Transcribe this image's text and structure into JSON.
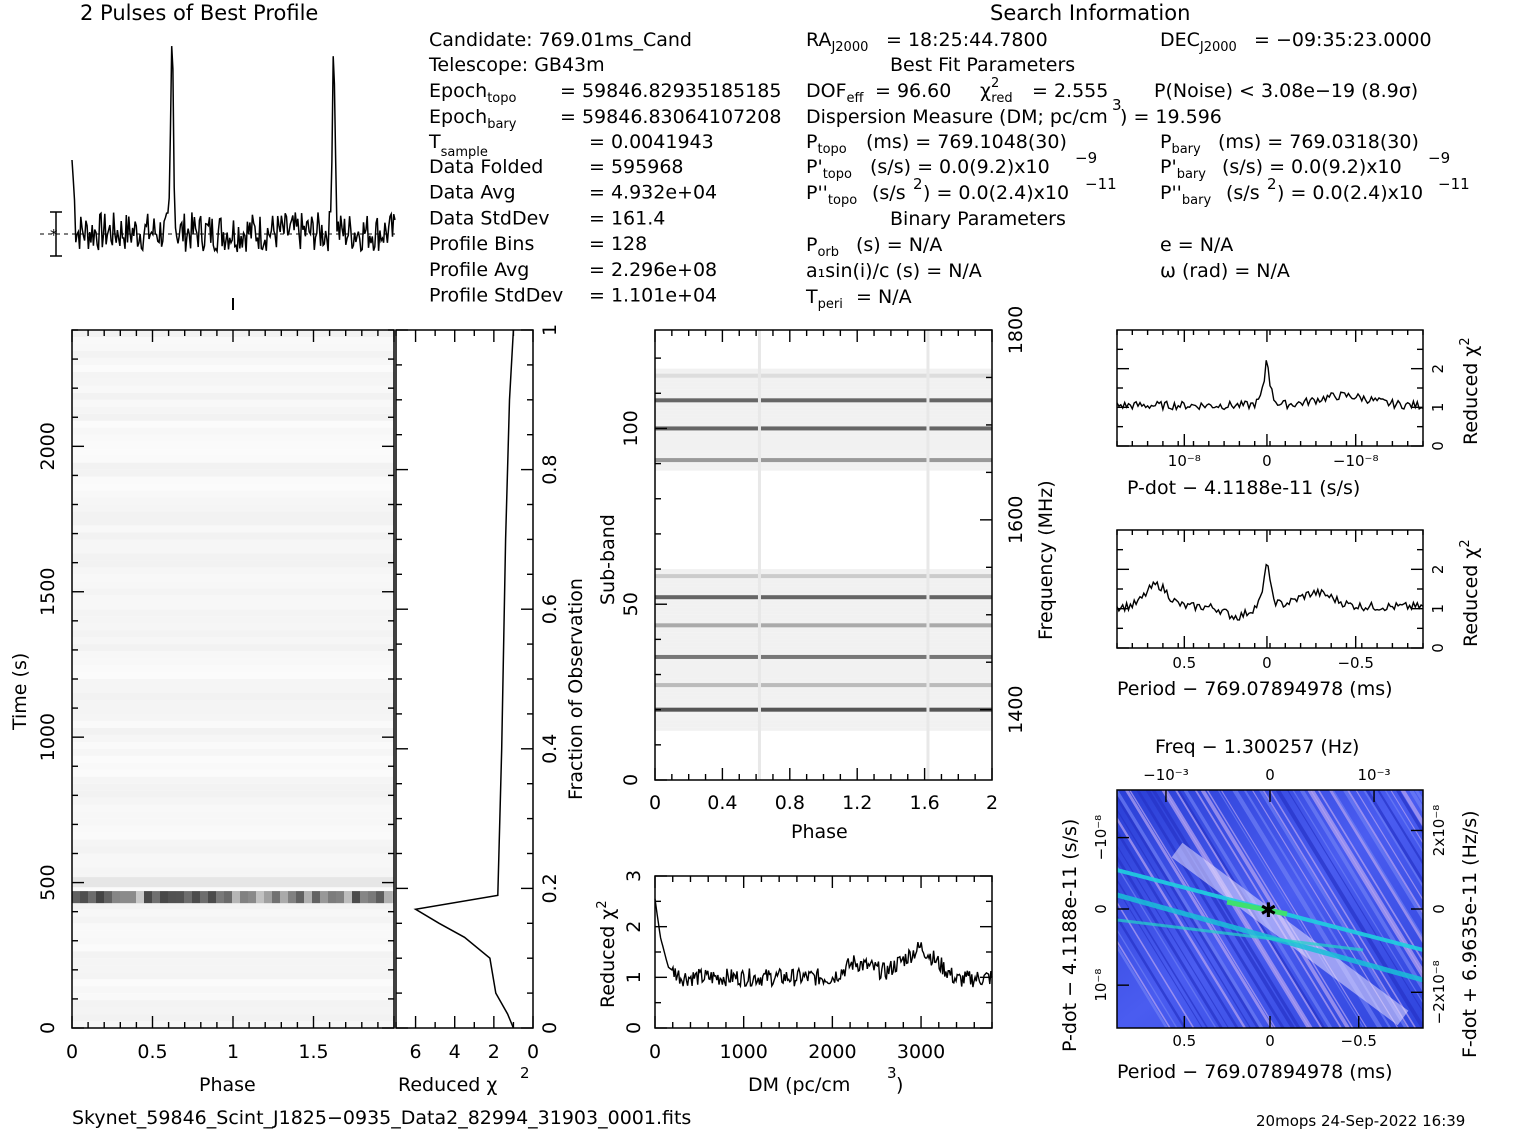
{
  "title_profile": "2 Pulses of Best Profile",
  "title_search": "Search Information",
  "info": {
    "candidate": "Candidate:  769.01ms_Cand",
    "telescope": "Telescope:  GB43m",
    "epoch_topo": "= 59846.82935185185",
    "epoch_bary": "= 59846.83064107208",
    "rows": [
      {
        "label": "Data Folded",
        "value": "=   595968"
      },
      {
        "label": "Data Avg",
        "value": "=   4.932e+04"
      },
      {
        "label": "Data StdDev",
        "value": "=   161.4"
      },
      {
        "label": "Profile Bins",
        "value": "=   128"
      },
      {
        "label": "Profile Avg",
        "value": "=   2.296e+08"
      },
      {
        "label": "Profile StdDev",
        "value": "=   1.101e+04"
      }
    ],
    "t_sample": "=   0.0041943",
    "ra": "= 18:25:44.7800",
    "dec": "= −09:35:23.0000",
    "best_fit_title": "Best Fit Parameters",
    "dof": "= 96.60",
    "chi_red": "= 2.555",
    "pnoise": "P(Noise) < 3.08e−19   (8.9σ)",
    "dm_line": "Dispersion Measure (DM; pc/cm",
    "dm_value": ") = 19.596",
    "p_topo": "(ms)  =   769.1048(30)",
    "p_bary": "(ms)  =   769.0318(30)",
    "pd_topo": "(s/s) = 0.0(9.2)x10",
    "pd_bary": "(s/s) = 0.0(9.2)x10",
    "pdd_topo": "(s/s",
    "pdd_topo_val": ") = 0.0(2.4)x10",
    "pdd_bary_val": ") = 0.0(2.4)x10",
    "binary_title": "Binary Parameters",
    "porb": "(s)  = N/A",
    "a1": "a₁sin(i)/c (s) = N/A",
    "tperi": "= N/A",
    "e": "e = N/A",
    "omega": "ω (rad) = N/A"
  },
  "labels": {
    "phase": "Phase",
    "time": "Time (s)",
    "reduced_chi": "Reduced χ",
    "fraction": "Fraction of Observation",
    "subband": "Sub-band",
    "frequency": "Frequency (MHz)",
    "dm": "DM (pc/cm",
    "pdot_axis": "P-dot − 4.1188e-11 (s/s)",
    "period_axis": "Period − 769.07894978 (ms)",
    "freq_axis": "Freq − 1.300257 (Hz)",
    "pdot_left": "P-dot − 4.1188e-11 (s/s)",
    "fdot_right": "F-dot + 6.9635e-11 (Hz/s)"
  },
  "footer": {
    "filename": "Skynet_59846_Scint_J1825−0935_Data2_82994_31903_0001.fits",
    "stamp": "20mops 24-Sep-2022 16:39"
  },
  "chart_data": [
    {
      "type": "line",
      "name": "profile",
      "title": "2 Pulses of Best Profile",
      "xlabel": "Phase",
      "x_range": [
        0,
        2
      ],
      "peaks_phase": [
        0.62,
        1.62
      ]
    },
    {
      "type": "heatmap",
      "name": "time-phase",
      "xlabel": "Phase",
      "ylabel": "Time (s)",
      "xlim": [
        0,
        2
      ],
      "ylim": [
        0,
        2400
      ],
      "xticks": [
        "0",
        "0.5",
        "1",
        "1.5"
      ],
      "yticks": [
        "0",
        "500",
        "1000",
        "1500",
        "2000"
      ],
      "bright_band_time": 450
    },
    {
      "type": "line",
      "name": "chi-vs-fraction",
      "xlabel": "Reduced χ²",
      "ylabel": "Fraction of Observation",
      "xlim": [
        7,
        0
      ],
      "ylim": [
        0,
        1
      ],
      "xticks": [
        "6",
        "4",
        "2",
        "0"
      ],
      "yticks": [
        "0",
        "0.2",
        "0.4",
        "0.6",
        "0.8",
        "1"
      ],
      "x": [
        1.0,
        1.3,
        1.9,
        2.2,
        3.5,
        4.8,
        6.0,
        1.8,
        1.6,
        1.4,
        1.2,
        1.0
      ],
      "y": [
        0.0,
        0.02,
        0.05,
        0.1,
        0.13,
        0.15,
        0.17,
        0.19,
        0.4,
        0.7,
        0.9,
        1.0
      ]
    },
    {
      "type": "heatmap",
      "name": "subband-phase",
      "xlabel": "Phase",
      "ylabel": "Sub-band",
      "y2label": "Frequency (MHz)",
      "xlim": [
        0,
        2
      ],
      "ylim": [
        0,
        128
      ],
      "xticks": [
        "0",
        "0.4",
        "0.8",
        "1.2",
        "1.6",
        "2"
      ],
      "yticks": [
        "0",
        "50",
        "100"
      ],
      "y2ticks": [
        "1400",
        "1600",
        "1800"
      ],
      "dark_bands": [
        20,
        27,
        35,
        44,
        52,
        58,
        91,
        100,
        108,
        115
      ]
    },
    {
      "type": "line",
      "name": "dm-chi",
      "xlabel": "DM (pc/cm³)",
      "ylabel": "Reduced χ²",
      "xlim": [
        0,
        3800
      ],
      "ylim": [
        0,
        3
      ],
      "xticks": [
        "0",
        "1000",
        "2000",
        "3000"
      ],
      "yticks": [
        "0",
        "1",
        "2",
        "3"
      ],
      "x": [
        0,
        20,
        60,
        150,
        300,
        1000,
        2000,
        2250,
        2600,
        3000,
        3400,
        3800
      ],
      "y": [
        2.55,
        2.3,
        1.8,
        1.2,
        1.0,
        1.0,
        1.0,
        1.3,
        1.1,
        1.6,
        0.95,
        1.0
      ]
    },
    {
      "type": "line",
      "name": "pdot-chi",
      "xlabel": "P-dot − 4.1188e-11 (s/s)",
      "ylabel": "Reduced χ²",
      "ylim": [
        0,
        3
      ],
      "xticks": [
        "10⁻⁸",
        "0",
        "−10⁻⁸"
      ],
      "yticks": [
        "0",
        "1",
        "2"
      ],
      "peak_value": 2.55
    },
    {
      "type": "line",
      "name": "period-chi",
      "xlabel": "Period − 769.07894978 (ms)",
      "ylabel": "Reduced χ²",
      "ylim": [
        0,
        3
      ],
      "xticks": [
        "0.5",
        "0",
        "−0.5"
      ],
      "yticks": [
        "0",
        "1",
        "2"
      ],
      "peak_value": 2.55
    },
    {
      "type": "heatmap",
      "name": "period-pdot",
      "xlabel": "Period − 769.07894978 (ms)",
      "ylabel": "P-dot − 4.1188e-11 (s/s)",
      "x2label": "Freq − 1.300257 (Hz)",
      "y2label": "F-dot + 6.9635e-11 (Hz/s)",
      "xticks": [
        "0.5",
        "0",
        "−0.5"
      ],
      "x2ticks": [
        "−10⁻³",
        "0",
        "10⁻³"
      ],
      "yticks": [
        "−10⁻⁸",
        "0",
        "10⁻⁸"
      ],
      "y2ticks": [
        "2x10⁻⁸",
        "0",
        "−2x10⁻⁸"
      ]
    }
  ]
}
